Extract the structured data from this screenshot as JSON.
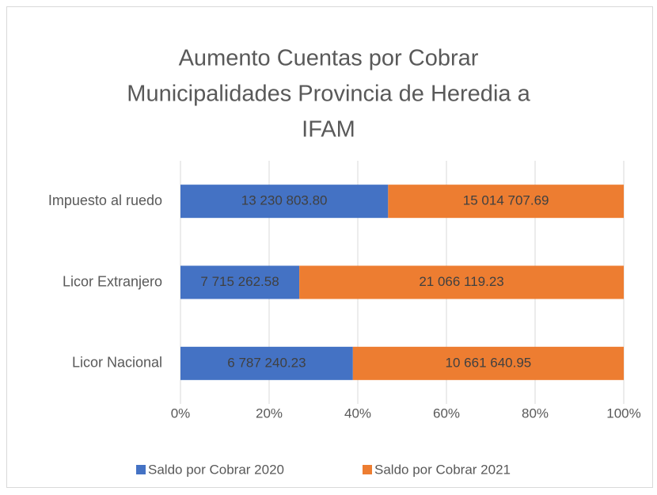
{
  "chart_data": {
    "type": "bar",
    "orientation": "horizontal",
    "stacking": "percent",
    "title": [
      "Aumento Cuentas por Cobrar",
      "Municipalidades Provincia de Heredia a",
      "IFAM"
    ],
    "categories": [
      "Impuesto al ruedo",
      "Licor Extranjero",
      "Licor Nacional"
    ],
    "series": [
      {
        "name": "Saldo por Cobrar 2020",
        "color": "#4472c4",
        "values": [
          13230803.8,
          7715262.58,
          6787240.23
        ],
        "value_labels": [
          "13 230 803.80",
          "7 715 262.58",
          "6 787 240.23"
        ]
      },
      {
        "name": "Saldo por Cobrar 2021",
        "color": "#ed7d31",
        "values": [
          15014707.69,
          21066119.23,
          10661640.95
        ],
        "value_labels": [
          "15 014 707.69",
          "21 066 119.23",
          "10 661 640.95"
        ]
      }
    ],
    "xlim": [
      0,
      100
    ],
    "xticks": [
      {
        "value": 0,
        "label": "0%"
      },
      {
        "value": 20,
        "label": "20%"
      },
      {
        "value": 40,
        "label": "40%"
      },
      {
        "value": 60,
        "label": "60%"
      },
      {
        "value": 80,
        "label": "80%"
      },
      {
        "value": 100,
        "label": "100%"
      }
    ],
    "grid": true,
    "legend": "bottom"
  }
}
